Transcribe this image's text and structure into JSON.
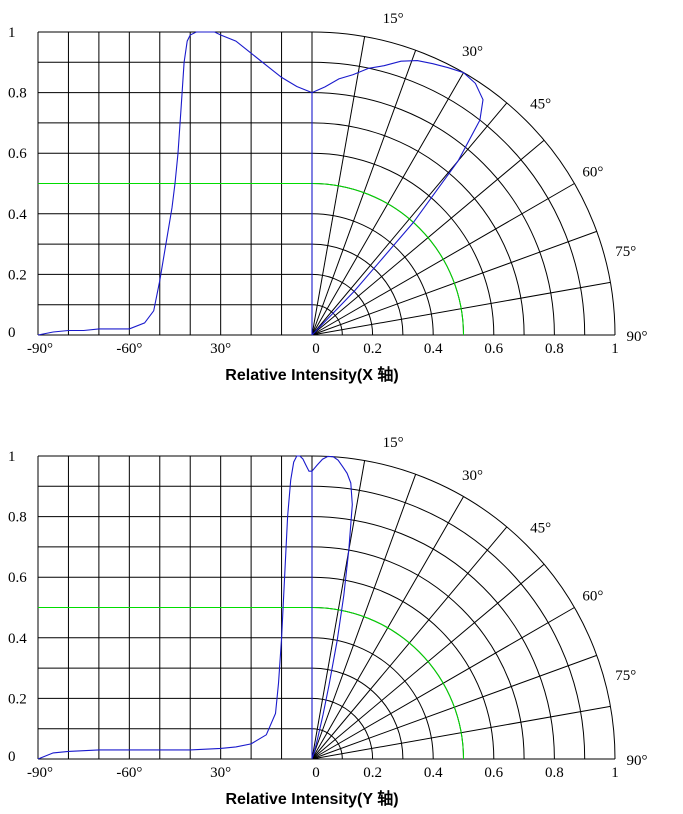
{
  "chart_data": [
    {
      "type": "line",
      "xlabel": "Relative Intensity(X 轴)",
      "cartesian": {
        "x_tick_labels": [
          "-90°",
          "-60°",
          "30°",
          "0"
        ],
        "y_ticks": [
          "0",
          "0.2",
          "0.4",
          "0.6",
          "0.8",
          "1"
        ],
        "ylim": [
          0,
          1
        ],
        "series": {
          "x_deg": [
            -90,
            -85,
            -80,
            -75,
            -70,
            -65,
            -60,
            -55,
            -52,
            -50,
            -48,
            -46,
            -45,
            -44,
            -43,
            -42,
            -41,
            -40,
            -38,
            -35,
            -32,
            -30,
            -25,
            -20,
            -15,
            -10,
            -5,
            0
          ],
          "y": [
            0.0,
            0.01,
            0.015,
            0.015,
            0.02,
            0.02,
            0.02,
            0.04,
            0.08,
            0.18,
            0.3,
            0.42,
            0.5,
            0.6,
            0.75,
            0.9,
            0.97,
            0.99,
            1.0,
            1.0,
            1.0,
            0.99,
            0.97,
            0.93,
            0.89,
            0.85,
            0.82,
            0.8
          ]
        }
      },
      "polar": {
        "angle_labels": [
          "15°",
          "30°",
          "45°",
          "60°",
          "75°",
          "90°"
        ],
        "radius_labels": [
          "0.2",
          "0.4",
          "0.6",
          "0.8",
          "1"
        ],
        "series": {
          "theta_deg": [
            0,
            3,
            6,
            9,
            12,
            15,
            18,
            21,
            24,
            27,
            30,
            33,
            36,
            38,
            40,
            42,
            44,
            46
          ],
          "r": [
            0.8,
            0.82,
            0.85,
            0.87,
            0.9,
            0.92,
            0.95,
            0.97,
            0.98,
            0.99,
            1.0,
            0.99,
            0.96,
            0.9,
            0.75,
            0.5,
            0.2,
            0.0
          ]
        }
      },
      "half_intensity": 0.5
    },
    {
      "type": "line",
      "xlabel": "Relative Intensity(Y 轴)",
      "cartesian": {
        "x_tick_labels": [
          "-90°",
          "-60°",
          "30°",
          "0"
        ],
        "y_ticks": [
          "0",
          "0.2",
          "0.4",
          "0.6",
          "0.8",
          "1"
        ],
        "ylim": [
          0,
          1
        ],
        "series": {
          "x_deg": [
            -90,
            -85,
            -80,
            -70,
            -60,
            -50,
            -40,
            -30,
            -25,
            -20,
            -15,
            -12,
            -11,
            -10,
            -9,
            -8,
            -7,
            -6,
            -5,
            -4,
            -3,
            -2,
            -1,
            0
          ],
          "y": [
            0.0,
            0.02,
            0.025,
            0.03,
            0.03,
            0.03,
            0.03,
            0.035,
            0.04,
            0.05,
            0.08,
            0.15,
            0.25,
            0.4,
            0.6,
            0.8,
            0.92,
            0.98,
            1.0,
            1.0,
            0.99,
            0.97,
            0.95,
            0.95
          ]
        }
      },
      "polar": {
        "angle_labels": [
          "15°",
          "30°",
          "45°",
          "60°",
          "75°",
          "90°"
        ],
        "radius_labels": [
          "0.2",
          "0.4",
          "0.6",
          "0.8",
          "1"
        ],
        "series": {
          "theta_deg": [
            0,
            1,
            2,
            3,
            4,
            5,
            6,
            7,
            8,
            9,
            10,
            11,
            12,
            13,
            14,
            15,
            16,
            18,
            20
          ],
          "r": [
            0.95,
            0.97,
            0.99,
            1.0,
            1.0,
            0.99,
            0.97,
            0.95,
            0.92,
            0.85,
            0.7,
            0.55,
            0.4,
            0.25,
            0.15,
            0.08,
            0.05,
            0.02,
            0.0
          ]
        }
      },
      "half_intensity": 0.5
    }
  ]
}
